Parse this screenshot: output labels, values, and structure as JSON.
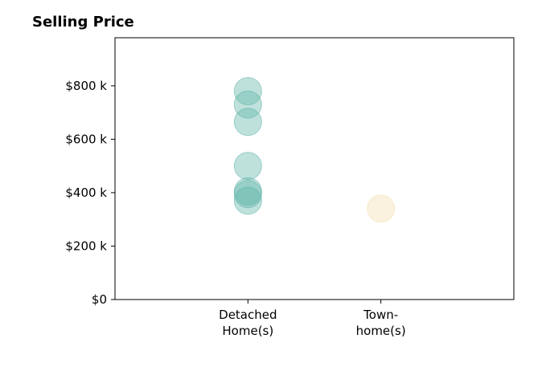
{
  "chart_data": {
    "type": "scatter",
    "title": "Selling Price",
    "xlabel": "",
    "ylabel": "",
    "categories": [
      [
        "Detached",
        "Home(s)"
      ],
      [
        "Town-",
        "home(s)"
      ]
    ],
    "y_ticks": [
      {
        "value": 0,
        "label": "$0"
      },
      {
        "value": 200000,
        "label": "$200 k"
      },
      {
        "value": 400000,
        "label": "$400 k"
      },
      {
        "value": 600000,
        "label": "$600 k"
      },
      {
        "value": 800000,
        "label": "$800 k"
      }
    ],
    "ylim": [
      0,
      980000
    ],
    "xlim": [
      -1,
      2
    ],
    "grid": false,
    "series": [
      {
        "category_index": 0,
        "color": "#5fb3a8",
        "values": [
          780000,
          730000,
          665000,
          500000,
          405000,
          395000,
          370000
        ]
      },
      {
        "category_index": 1,
        "color": "#f3deaf",
        "values": [
          340000
        ]
      }
    ]
  }
}
